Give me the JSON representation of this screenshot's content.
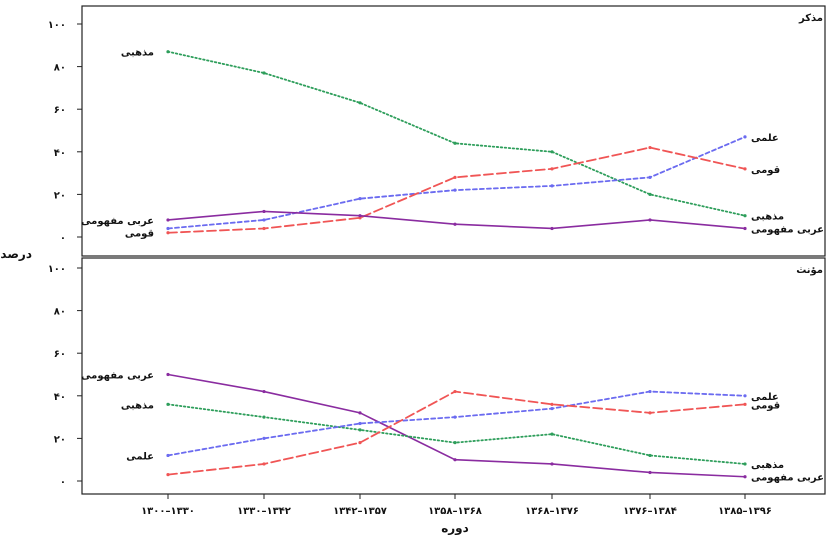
{
  "chart_data": {
    "type": "line",
    "ylabel": "درصد",
    "xlabel": "دوره",
    "categories": [
      "۱۳۰۰–۱۳۳۰",
      "۱۳۳۰–۱۳۴۲",
      "۱۳۴۲–۱۳۵۷",
      "۱۳۵۸–۱۳۶۸",
      "۱۳۶۸–۱۳۷۶",
      "۱۳۷۶–۱۳۸۴",
      "۱۳۸۵–۱۳۹۶"
    ],
    "yticks": [
      0,
      20,
      40,
      60,
      80,
      100
    ],
    "ytick_labels": [
      "۰",
      "۲۰",
      "۴۰",
      "۶۰",
      "۸۰",
      "۱۰۰"
    ],
    "ylim": [
      0,
      100
    ],
    "grid": false,
    "panels": [
      {
        "title": "مذکر",
        "series": [
          {
            "name": "مذهبی",
            "color": "#2e9e5b",
            "dash": "dotted",
            "values": [
              87,
              77,
              63,
              44,
              40,
              20,
              10
            ],
            "start_label": "مذهبی",
            "end_label": "مذهبی"
          },
          {
            "name": "علمی",
            "color": "#6b6bf0",
            "dash": "dashed-short",
            "values": [
              4,
              8,
              18,
              22,
              24,
              28,
              47
            ],
            "start_label": "",
            "end_label": "علمی"
          },
          {
            "name": "قومی",
            "color": "#f05555",
            "dash": "dashed-long",
            "values": [
              2,
              4,
              9,
              28,
              32,
              42,
              32
            ],
            "start_label": "قومی",
            "end_label": "قومی"
          },
          {
            "name": "عربی مفهومی",
            "color": "#8a2ca0",
            "dash": "solid",
            "values": [
              8,
              12,
              10,
              6,
              4,
              8,
              4
            ],
            "start_label": "عربی مفهومی",
            "end_label": "عربی مفهومی"
          }
        ]
      },
      {
        "title": "مؤنث",
        "series": [
          {
            "name": "عربی مفهومی",
            "color": "#8a2ca0",
            "dash": "solid",
            "values": [
              50,
              42,
              32,
              10,
              8,
              4,
              2
            ],
            "start_label": "عربی مفهومی",
            "end_label": "عربی مفهومی"
          },
          {
            "name": "مذهبی",
            "color": "#2e9e5b",
            "dash": "dotted",
            "values": [
              36,
              30,
              24,
              18,
              22,
              12,
              8
            ],
            "start_label": "مذهبی",
            "end_label": "مذهبی"
          },
          {
            "name": "علمی",
            "color": "#6b6bf0",
            "dash": "dashed-short",
            "values": [
              12,
              20,
              27,
              30,
              34,
              42,
              40
            ],
            "start_label": "علمی",
            "end_label": "علمی"
          },
          {
            "name": "قومی",
            "color": "#f05555",
            "dash": "dashed-long",
            "values": [
              3,
              8,
              18,
              42,
              36,
              32,
              36
            ],
            "start_label": "",
            "end_label": "قومی"
          }
        ]
      }
    ]
  }
}
